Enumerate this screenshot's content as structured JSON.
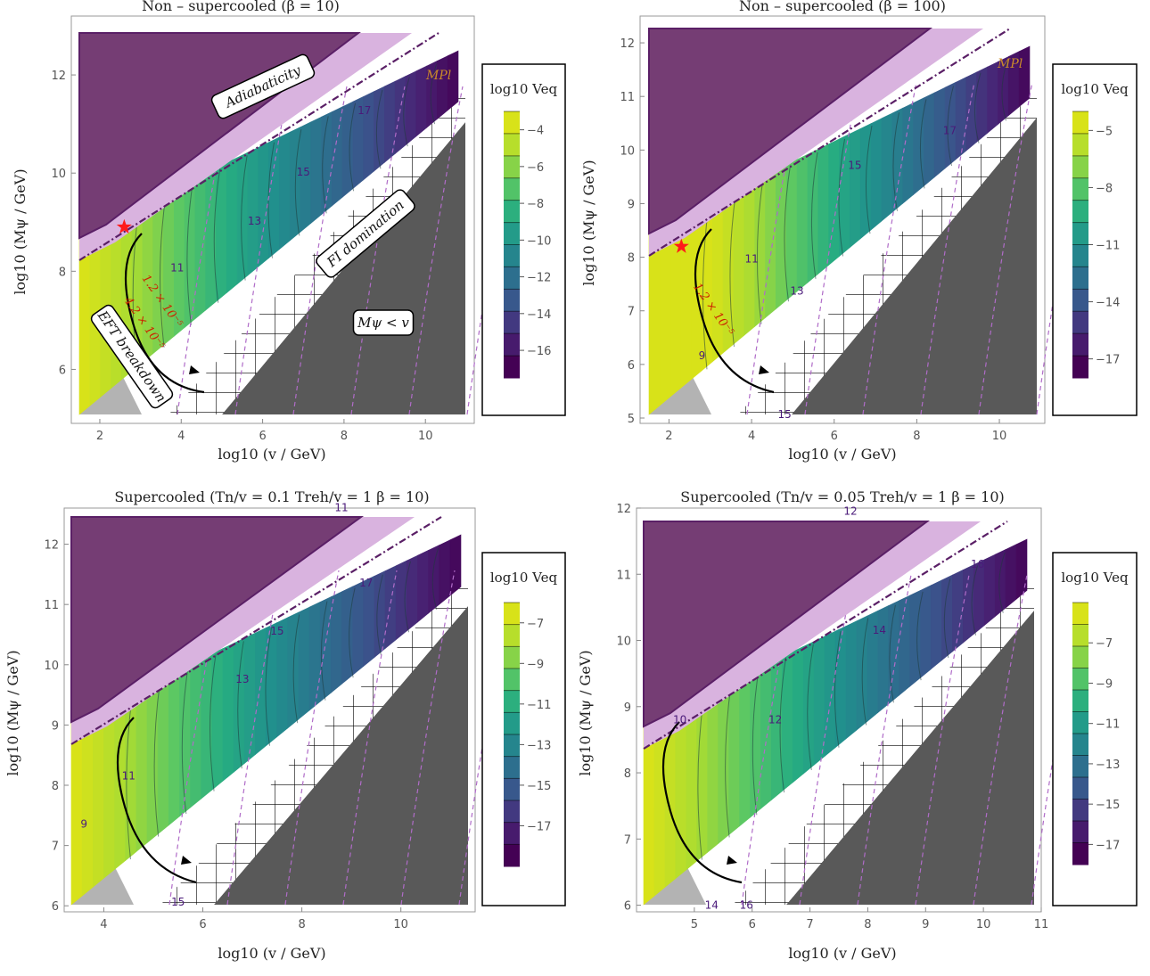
{
  "chart_data": [
    {
      "type": "heatmap",
      "title": "Non – supercooled (β = 10)",
      "xlabel": "log10 (v / GeV)",
      "ylabel": "log10 (Mψ / GeV)",
      "xlim": [
        1.3,
        11.2
      ],
      "ylim": [
        4.9,
        13.2
      ],
      "xticks": [
        2,
        4,
        6,
        8,
        10
      ],
      "yticks": [
        6,
        8,
        10,
        12
      ],
      "colorbar": {
        "title": "log10 Veq",
        "range": [
          -17.5,
          -3
        ],
        "ticks": [
          -4,
          -6,
          -8,
          -10,
          -12,
          -14,
          -16
        ]
      },
      "contour_labels": [
        {
          "text": "11",
          "x": 3.9,
          "y": 8.0
        },
        {
          "text": "13",
          "x": 5.8,
          "y": 8.95
        },
        {
          "text": "15",
          "x": 7.0,
          "y": 9.95
        },
        {
          "text": "17",
          "x": 8.5,
          "y": 11.2
        }
      ],
      "red_labels": [
        "1.2 × 10⁻⁵",
        "4.2 × 10⁻⁵"
      ],
      "region_labels": [
        "Adiabaticity",
        "FI domination",
        "EFT breakdown",
        "Mψ < v"
      ],
      "planck_label": "MPl",
      "star": {
        "x": 2.6,
        "y": 8.9
      }
    },
    {
      "type": "heatmap",
      "title": "Non – supercooled (β = 100)",
      "xlabel": "log10 (v / GeV)",
      "ylabel": "log10 (Mψ / GeV)",
      "xlim": [
        1.3,
        11.1
      ],
      "ylim": [
        4.9,
        12.5
      ],
      "xticks": [
        2,
        4,
        6,
        8,
        10
      ],
      "yticks": [
        5,
        6,
        7,
        8,
        9,
        10,
        11,
        12
      ],
      "colorbar": {
        "title": "log10 Veq",
        "range": [
          -18,
          -4
        ],
        "ticks": [
          -5,
          -8,
          -11,
          -14,
          -17
        ]
      },
      "contour_labels": [
        {
          "text": "9",
          "x": 2.8,
          "y": 6.1
        },
        {
          "text": "11",
          "x": 4.0,
          "y": 7.9
        },
        {
          "text": "13",
          "x": 5.1,
          "y": 7.3
        },
        {
          "text": "15",
          "x": 6.5,
          "y": 9.65
        },
        {
          "text": "17",
          "x": 8.8,
          "y": 10.3
        },
        {
          "text": "15",
          "x": 4.8,
          "y": 5.0
        }
      ],
      "red_labels": [
        "1.2 × 10⁻⁵"
      ],
      "planck_label": "MPl",
      "star": {
        "x": 2.3,
        "y": 8.2
      }
    },
    {
      "type": "heatmap",
      "title": "Supercooled (Tn/v = 0.1   Treh/v = 1   β = 10)",
      "xlabel": "log10 (v / GeV)",
      "ylabel": "log10 (Mψ / GeV)",
      "xlim": [
        3.2,
        11.5
      ],
      "ylim": [
        5.9,
        12.6
      ],
      "xticks": [
        4,
        6,
        8,
        10
      ],
      "yticks": [
        6,
        7,
        8,
        9,
        10,
        11,
        12
      ],
      "colorbar": {
        "title": "log10 Veq",
        "range": [
          -19,
          -6
        ],
        "ticks": [
          -7,
          -9,
          -11,
          -13,
          -15,
          -17
        ]
      },
      "contour_labels": [
        {
          "text": "9",
          "x": 3.6,
          "y": 7.3
        },
        {
          "text": "11",
          "x": 4.5,
          "y": 8.1
        },
        {
          "text": "13",
          "x": 6.8,
          "y": 9.7
        },
        {
          "text": "15",
          "x": 7.5,
          "y": 10.5
        },
        {
          "text": "17",
          "x": 9.3,
          "y": 11.3
        },
        {
          "text": "15",
          "x": 5.5,
          "y": 6.0
        },
        {
          "text": "11",
          "x": 8.8,
          "y": 12.55
        }
      ]
    },
    {
      "type": "heatmap",
      "title": "Supercooled (Tn/v = 0.05   Treh/v = 1   β = 10)",
      "xlabel": "log10 (v / GeV)",
      "ylabel": "log10 (Mψ / GeV)",
      "xlim": [
        4.0,
        11.0
      ],
      "ylim": [
        5.9,
        12.0
      ],
      "xticks": [
        5,
        6,
        7,
        8,
        9,
        10,
        11
      ],
      "yticks": [
        6,
        7,
        8,
        9,
        10,
        11,
        12
      ],
      "colorbar": {
        "title": "log10 Veq",
        "range": [
          -18,
          -5
        ],
        "ticks": [
          -7,
          -9,
          -11,
          -13,
          -15,
          -17
        ]
      },
      "contour_labels": [
        {
          "text": "10",
          "x": 4.75,
          "y": 8.75
        },
        {
          "text": "12",
          "x": 6.4,
          "y": 8.75
        },
        {
          "text": "14",
          "x": 8.2,
          "y": 10.1
        },
        {
          "text": "16",
          "x": 9.9,
          "y": 11.1
        },
        {
          "text": "12",
          "x": 7.7,
          "y": 11.9
        },
        {
          "text": "14",
          "x": 5.3,
          "y": 5.95
        },
        {
          "text": "16",
          "x": 5.9,
          "y": 5.95
        }
      ]
    }
  ]
}
